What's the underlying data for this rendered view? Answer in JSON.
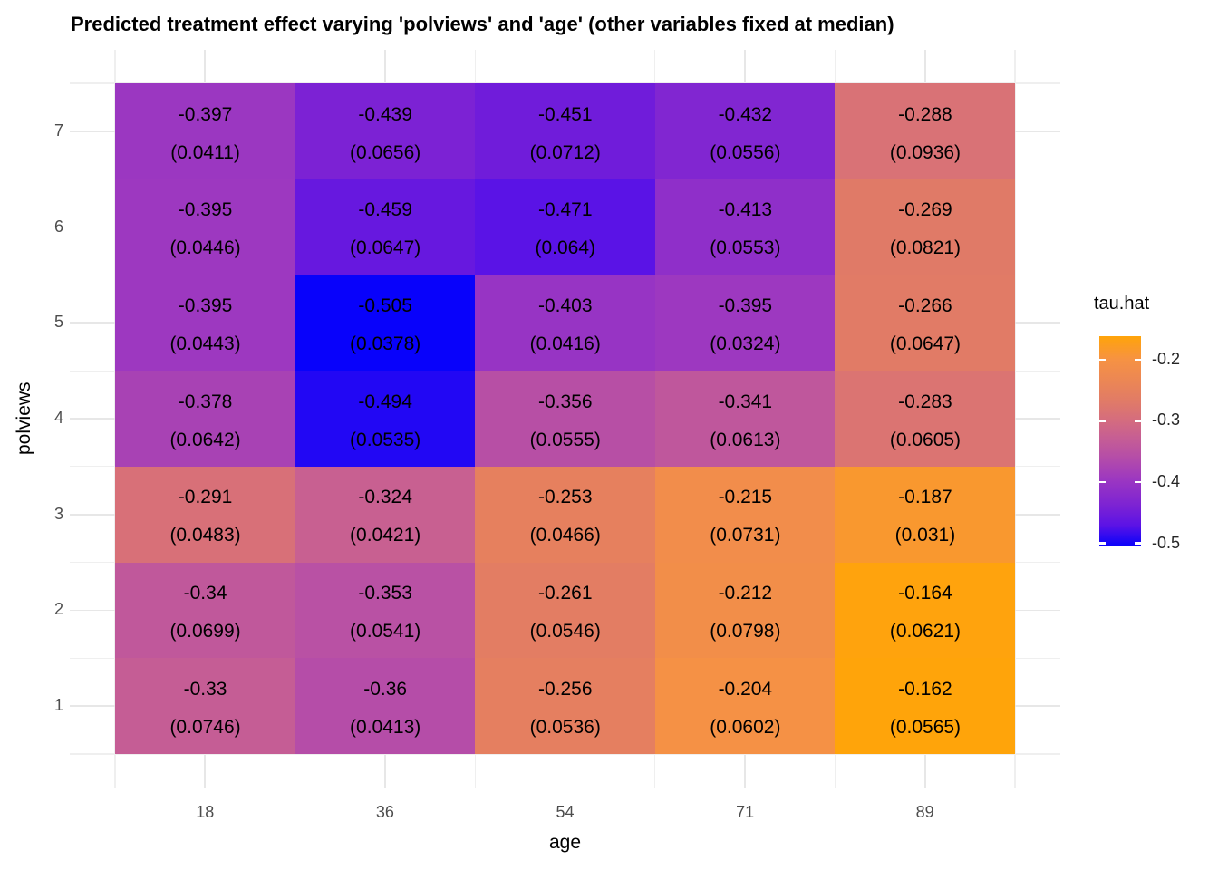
{
  "title": "Predicted treatment effect varying 'polviews' and 'age' (other variables fixed at median)",
  "colors": {
    "background": "#ffffff",
    "title_text": "#000000",
    "axis_tick_text": "#4d4d4d",
    "axis_title_text": "#000000",
    "cell_text": "#000000",
    "grid_major": "#e7e7e7",
    "grid_minor": "#efefef",
    "legend_tick_mark": "#ffffff"
  },
  "chart_data": {
    "type": "heatmap",
    "title": "Predicted treatment effect varying 'polviews' and 'age' (other variables fixed at median)",
    "xlabel": "age",
    "ylabel": "polviews",
    "x_categories": [
      "18",
      "36",
      "54",
      "71",
      "89"
    ],
    "y_categories": [
      "7",
      "6",
      "5",
      "4",
      "3",
      "2",
      "1"
    ],
    "grid": {
      "major": "on",
      "minor": "on",
      "panel_background": "white"
    },
    "cell_label_format": "tau newline (se)",
    "rows": [
      {
        "polviews": "7",
        "values": [
          {
            "tau": "-0.397",
            "se": "0.0411"
          },
          {
            "tau": "-0.439",
            "se": "0.0656"
          },
          {
            "tau": "-0.451",
            "se": "0.0712"
          },
          {
            "tau": "-0.432",
            "se": "0.0556"
          },
          {
            "tau": "-0.288",
            "se": "0.0936"
          }
        ]
      },
      {
        "polviews": "6",
        "values": [
          {
            "tau": "-0.395",
            "se": "0.0446"
          },
          {
            "tau": "-0.459",
            "se": "0.0647"
          },
          {
            "tau": "-0.471",
            "se": "0.064"
          },
          {
            "tau": "-0.413",
            "se": "0.0553"
          },
          {
            "tau": "-0.269",
            "se": "0.0821"
          }
        ]
      },
      {
        "polviews": "5",
        "values": [
          {
            "tau": "-0.395",
            "se": "0.0443"
          },
          {
            "tau": "-0.505",
            "se": "0.0378"
          },
          {
            "tau": "-0.403",
            "se": "0.0416"
          },
          {
            "tau": "-0.395",
            "se": "0.0324"
          },
          {
            "tau": "-0.266",
            "se": "0.0647"
          }
        ]
      },
      {
        "polviews": "4",
        "values": [
          {
            "tau": "-0.378",
            "se": "0.0642"
          },
          {
            "tau": "-0.494",
            "se": "0.0535"
          },
          {
            "tau": "-0.356",
            "se": "0.0555"
          },
          {
            "tau": "-0.341",
            "se": "0.0613"
          },
          {
            "tau": "-0.283",
            "se": "0.0605"
          }
        ]
      },
      {
        "polviews": "3",
        "values": [
          {
            "tau": "-0.291",
            "se": "0.0483"
          },
          {
            "tau": "-0.324",
            "se": "0.0421"
          },
          {
            "tau": "-0.253",
            "se": "0.0466"
          },
          {
            "tau": "-0.215",
            "se": "0.0731"
          },
          {
            "tau": "-0.187",
            "se": "0.031"
          }
        ]
      },
      {
        "polviews": "2",
        "values": [
          {
            "tau": "-0.34",
            "se": "0.0699"
          },
          {
            "tau": "-0.353",
            "se": "0.0541"
          },
          {
            "tau": "-0.261",
            "se": "0.0546"
          },
          {
            "tau": "-0.212",
            "se": "0.0798"
          },
          {
            "tau": "-0.164",
            "se": "0.0621"
          }
        ]
      },
      {
        "polviews": "1",
        "values": [
          {
            "tau": "-0.33",
            "se": "0.0746"
          },
          {
            "tau": "-0.36",
            "se": "0.0413"
          },
          {
            "tau": "-0.256",
            "se": "0.0536"
          },
          {
            "tau": "-0.204",
            "se": "0.0602"
          },
          {
            "tau": "-0.162",
            "se": "0.0565"
          }
        ]
      }
    ],
    "legend": {
      "title": "tau.hat",
      "position": "right",
      "orientation": "vertical",
      "ticks": [
        "-0.2",
        "-0.3",
        "-0.4",
        "-0.5"
      ],
      "domain_max": -0.162,
      "domain_min": -0.505
    },
    "colormap": [
      {
        "value": -0.505,
        "color": "#0802fb"
      },
      {
        "value": -0.47,
        "color": "#5c13e5"
      },
      {
        "value": -0.44,
        "color": "#7b22d4"
      },
      {
        "value": -0.4,
        "color": "#9935c3"
      },
      {
        "value": -0.36,
        "color": "#b54da8"
      },
      {
        "value": -0.33,
        "color": "#c55d95"
      },
      {
        "value": -0.3,
        "color": "#d46c7f"
      },
      {
        "value": -0.27,
        "color": "#e07a68"
      },
      {
        "value": -0.24,
        "color": "#ea8557"
      },
      {
        "value": -0.2,
        "color": "#f69243"
      },
      {
        "value": -0.162,
        "color": "#ffa40a"
      }
    ]
  }
}
